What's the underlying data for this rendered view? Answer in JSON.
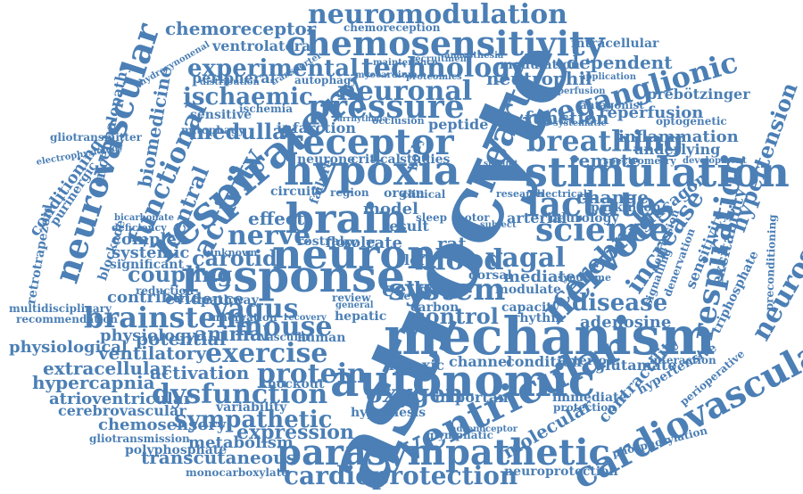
{
  "cloud": {
    "color": "#4b7fb5",
    "words": [
      {
        "text": "astrocyte",
        "rotated": true
      },
      {
        "text": "mechanism"
      },
      {
        "text": "autonomic"
      },
      {
        "text": "parasympathetic"
      },
      {
        "text": "ventricular",
        "rotated": true
      },
      {
        "text": "cardiovascular",
        "rotated": true
      },
      {
        "text": "respiratory",
        "rotated": true
      },
      {
        "text": "response"
      },
      {
        "text": "neuron"
      },
      {
        "text": "brain"
      },
      {
        "text": "hypoxia"
      },
      {
        "text": "stimulation"
      },
      {
        "text": "receptor"
      },
      {
        "text": "chemosensitivity"
      },
      {
        "text": "neuromodulation"
      },
      {
        "text": "technology"
      },
      {
        "text": "experimental"
      },
      {
        "text": "pressure"
      },
      {
        "text": "neuronal"
      },
      {
        "text": "breathing"
      },
      {
        "text": "preganglionic",
        "rotated": true
      },
      {
        "text": "lactate"
      },
      {
        "text": "science"
      },
      {
        "text": "blood"
      },
      {
        "text": "system"
      },
      {
        "text": "nervous",
        "rotated": true
      },
      {
        "text": "cerebral",
        "rotated": true
      },
      {
        "text": "respiration",
        "rotated": true
      },
      {
        "text": "neuroscience",
        "rotated": true
      },
      {
        "text": "brainstem"
      },
      {
        "text": "exercise"
      },
      {
        "text": "dysfunction"
      },
      {
        "text": "sympathetic"
      },
      {
        "text": "protein"
      },
      {
        "text": "activation"
      },
      {
        "text": "expression"
      },
      {
        "text": "metabolism"
      },
      {
        "text": "transcutaneous"
      },
      {
        "text": "cardioprotection"
      },
      {
        "text": "oxygen"
      },
      {
        "text": "neurovascular",
        "rotated": true
      },
      {
        "text": "functional",
        "rotated": true
      },
      {
        "text": "biomedicine",
        "rotated": true
      },
      {
        "text": "activity",
        "rotated": true
      },
      {
        "text": "ischaemic"
      },
      {
        "text": "medulla"
      },
      {
        "text": "heart"
      },
      {
        "text": "vagus"
      },
      {
        "text": "mouse"
      },
      {
        "text": "nerve"
      },
      {
        "text": "carotid"
      },
      {
        "text": "coupling"
      },
      {
        "text": "vagal"
      },
      {
        "text": "control"
      },
      {
        "text": "disease"
      },
      {
        "text": "adenosine"
      },
      {
        "text": "reperfusion"
      },
      {
        "text": "function"
      },
      {
        "text": "inflammation"
      },
      {
        "text": "dependent"
      },
      {
        "text": "modulation"
      },
      {
        "text": "neutrophil"
      },
      {
        "text": "peripheral"
      },
      {
        "text": "ventrolateral"
      },
      {
        "text": "chemoreceptor"
      },
      {
        "text": "chemoreception"
      },
      {
        "text": "intracellular"
      },
      {
        "text": "prebötzinger"
      },
      {
        "text": "optogenetic"
      },
      {
        "text": "underlying"
      },
      {
        "text": "development"
      },
      {
        "text": "hypertension",
        "rotated": true
      },
      {
        "text": "excitability",
        "rotated": true
      },
      {
        "text": "sensitivity",
        "rotated": true
      },
      {
        "text": "increase",
        "rotated": true
      },
      {
        "text": "glucagon"
      },
      {
        "text": "parkinson"
      },
      {
        "text": "change"
      },
      {
        "text": "remote"
      },
      {
        "text": "neurology"
      },
      {
        "text": "arterial"
      },
      {
        "text": "mediate"
      },
      {
        "text": "modulate"
      },
      {
        "text": "dorsal"
      },
      {
        "text": "rat"
      },
      {
        "text": "cell"
      },
      {
        "text": "rate"
      },
      {
        "text": "role"
      },
      {
        "text": "flow"
      },
      {
        "text": "rostral"
      },
      {
        "text": "model"
      },
      {
        "text": "result"
      },
      {
        "text": "effect"
      },
      {
        "text": "central"
      },
      {
        "text": "complex"
      },
      {
        "text": "systemic"
      },
      {
        "text": "significant"
      },
      {
        "text": "contribute"
      },
      {
        "text": "evidence"
      },
      {
        "text": "reduction"
      },
      {
        "text": "pathway"
      },
      {
        "text": "innervation"
      },
      {
        "text": "physiology"
      },
      {
        "text": "physiological"
      },
      {
        "text": "potential"
      },
      {
        "text": "animal"
      },
      {
        "text": "ventilatory"
      },
      {
        "text": "extracellular"
      },
      {
        "text": "hypercapnia"
      },
      {
        "text": "atrioventricular"
      },
      {
        "text": "cerebrovascular"
      },
      {
        "text": "chemosensory"
      },
      {
        "text": "gliotransmission"
      },
      {
        "text": "polyphosphate"
      },
      {
        "text": "monocarboxylate"
      },
      {
        "text": "hypothesis"
      },
      {
        "text": "knockout"
      },
      {
        "text": "variability"
      },
      {
        "text": "human"
      },
      {
        "text": "vascular"
      },
      {
        "text": "hypoxic"
      },
      {
        "text": "channel"
      },
      {
        "text": "condition"
      },
      {
        "text": "arteriole"
      },
      {
        "text": "glutamate"
      },
      {
        "text": "important"
      },
      {
        "text": "immediate"
      },
      {
        "text": "protection"
      },
      {
        "text": "molecular",
        "rotated": true
      },
      {
        "text": "contractility",
        "rotated": true
      },
      {
        "text": "hypertensive"
      },
      {
        "text": "perioperative"
      },
      {
        "text": "phosphorylation"
      },
      {
        "text": "interaction"
      },
      {
        "text": "neuroprotection"
      },
      {
        "text": "glymphatic"
      },
      {
        "text": "adrenoceptor"
      },
      {
        "text": "rhythm"
      },
      {
        "text": "capacity"
      },
      {
        "text": "carbon"
      },
      {
        "text": "hepatic"
      },
      {
        "text": "dvmn"
      },
      {
        "text": "multidisciplinary"
      },
      {
        "text": "recommendation"
      },
      {
        "text": "conditioning",
        "rotated": true
      },
      {
        "text": "purinergic",
        "rotated": true
      },
      {
        "text": "encephalopathy",
        "rotated": true
      },
      {
        "text": "gliotransmitter"
      },
      {
        "text": "electrophysiology"
      },
      {
        "text": "retrotrapezoid",
        "rotated": true
      },
      {
        "text": "blockade",
        "rotated": true
      },
      {
        "text": "deficiency"
      },
      {
        "text": "bicarbonate"
      },
      {
        "text": "sensitive"
      },
      {
        "text": "ischemia"
      },
      {
        "text": "mitophagy"
      },
      {
        "text": "infarction"
      },
      {
        "text": "peptide"
      },
      {
        "text": "studies"
      },
      {
        "text": "critical"
      },
      {
        "text": "neurone"
      },
      {
        "text": "circuit"
      },
      {
        "text": "region"
      },
      {
        "text": "organ"
      },
      {
        "text": "failure"
      },
      {
        "text": "autophagy"
      },
      {
        "text": "myocardium"
      },
      {
        "text": "proteomics"
      },
      {
        "text": "transporter"
      },
      {
        "text": "distribution"
      },
      {
        "text": "hydroxynonenal"
      },
      {
        "text": "recruitment"
      },
      {
        "text": "anaesthesia"
      },
      {
        "text": "maintenance"
      },
      {
        "text": "perfusion"
      },
      {
        "text": "application"
      },
      {
        "text": "antagonist"
      },
      {
        "text": "spectrometry"
      },
      {
        "text": "depression",
        "rotated": true
      },
      {
        "text": "triphosphate",
        "rotated": true
      },
      {
        "text": "preconditioning",
        "rotated": true
      },
      {
        "text": "signalling",
        "rotated": true
      },
      {
        "text": "denervation",
        "rotated": true
      },
      {
        "text": "syndrome"
      },
      {
        "text": "motor"
      },
      {
        "text": "clinical"
      },
      {
        "text": "left"
      },
      {
        "text": "sleep"
      },
      {
        "text": "level"
      },
      {
        "text": "review"
      },
      {
        "text": "general"
      },
      {
        "text": "recovery"
      },
      {
        "text": "occlusion"
      },
      {
        "text": "arrhythmia"
      },
      {
        "text": "electrical"
      },
      {
        "text": "research"
      },
      {
        "text": "systematic"
      },
      {
        "text": "subunit"
      },
      {
        "text": "unknown"
      },
      {
        "text": "subject"
      },
      {
        "text": "body"
      }
    ]
  }
}
